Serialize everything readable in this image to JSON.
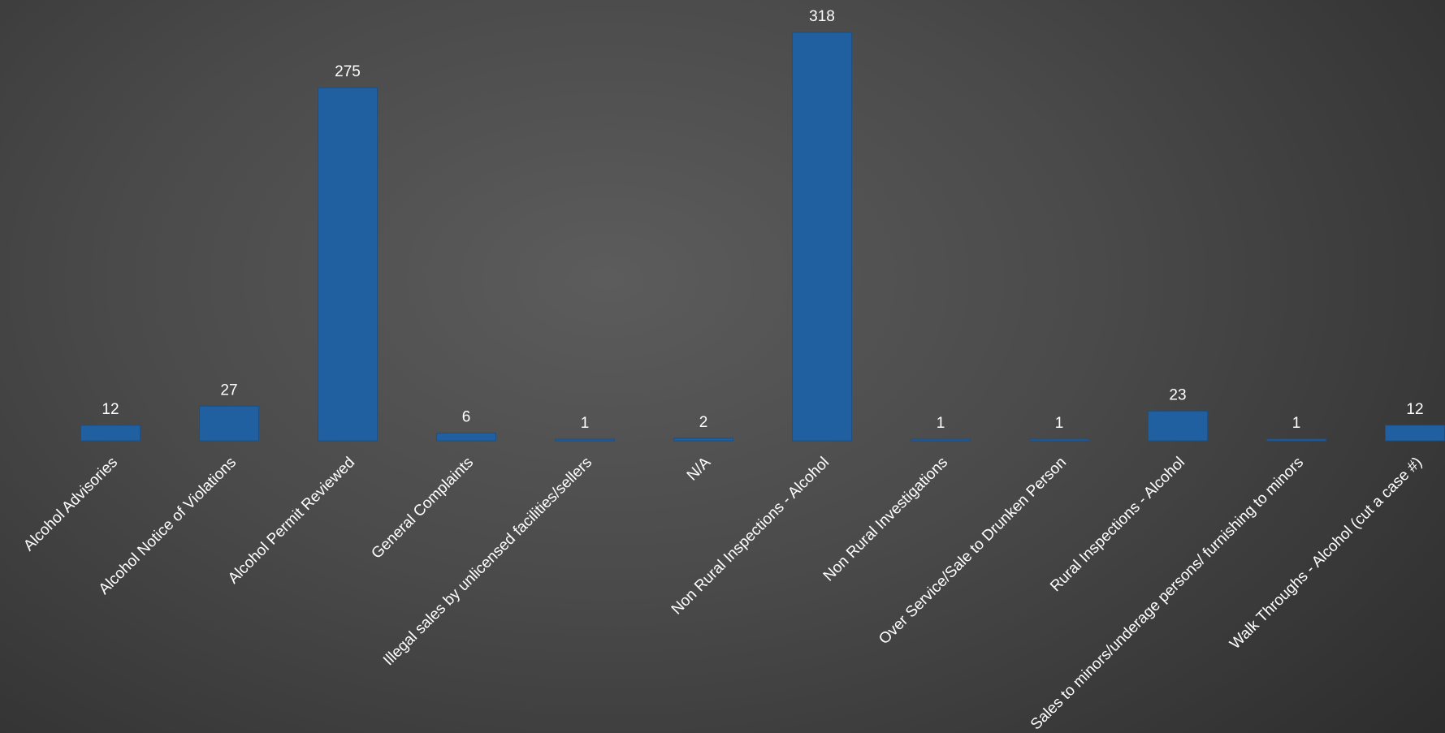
{
  "chart_data": {
    "type": "bar",
    "title": "",
    "xlabel": "",
    "ylabel": "",
    "ylim": [
      0,
      318
    ],
    "grid": false,
    "legend": "none",
    "categories": [
      "Alcohol Advisories",
      "Alcohol Notice of Violations",
      "Alcohol Permit Reviewed",
      "General Complaints",
      "Illegal sales by unlicensed facilities/sellers",
      "N/A",
      "Non Rural Inspections - Alcohol",
      "Non Rural Investigations",
      "Over Service/Sale to Drunken Person",
      "Rural Inspections - Alcohol",
      "Sales to minors/underage persons/ furnishing to minors",
      "Walk Throughs - Alcohol (cut a case #)"
    ],
    "values": [
      12,
      27,
      275,
      6,
      1,
      2,
      318,
      1,
      1,
      23,
      1,
      12
    ],
    "data_labels": [
      "12",
      "27",
      "275",
      "6",
      "1",
      "2",
      "318",
      "1",
      "1",
      "23",
      "1",
      "12"
    ],
    "colors": {
      "bar": "#2160a0",
      "bar_edge": "#1b4f86",
      "text": "#ffffff"
    }
  }
}
